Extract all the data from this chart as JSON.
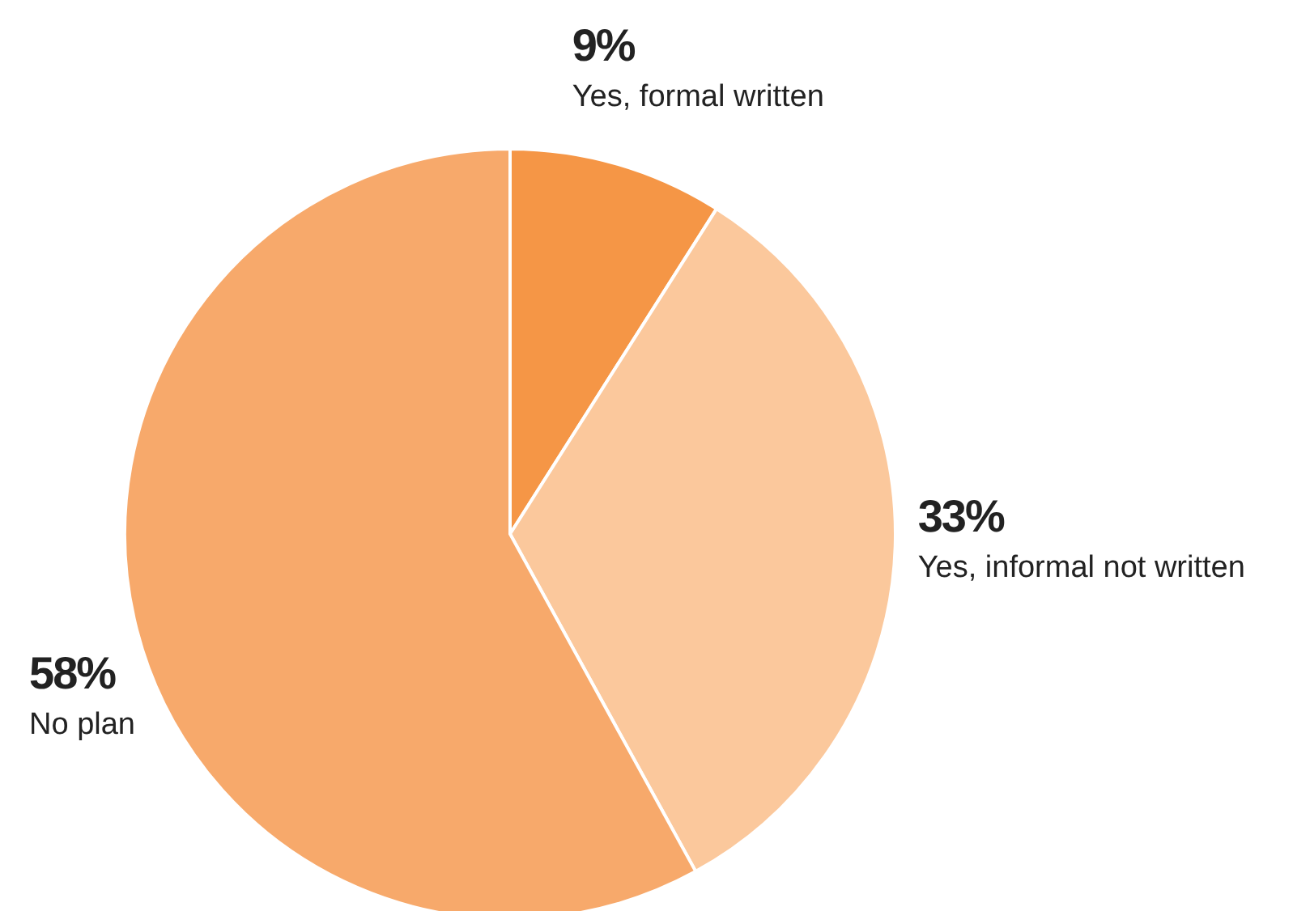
{
  "chart_data": {
    "type": "pie",
    "categories": [
      "Yes, formal written",
      "Yes, informal not written",
      "No plan"
    ],
    "values": [
      9,
      33,
      58
    ],
    "value_labels": [
      "9%",
      "33%",
      "58%"
    ],
    "colors": [
      "#f59646",
      "#fbc89c",
      "#f7a96b"
    ]
  }
}
